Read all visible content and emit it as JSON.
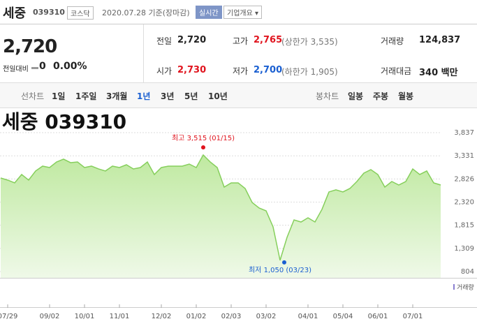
{
  "header": {
    "name": "세중",
    "code": "039310",
    "market": "코스닥",
    "date": "2020.07.28 기준(장마감)",
    "buttons": [
      "실시간",
      "기업개요"
    ]
  },
  "price": {
    "current": "2,720",
    "change_label": "전일대비",
    "change": "0",
    "change_pct": "0.00%"
  },
  "stats": [
    {
      "label": "전일",
      "value": "2,720"
    },
    {
      "label": "고가",
      "value": "2,765",
      "extra": "(상한가 3,535)",
      "color": "#e0141e"
    },
    {
      "label": "거래량",
      "value": "124,837"
    },
    {
      "label": "시가",
      "value": "2,730",
      "color": "#e0141e"
    },
    {
      "label": "저가",
      "value": "2,700",
      "extra": "(하한가 1,905)",
      "color": "#1a5fd1"
    },
    {
      "label": "거래대금",
      "value": "340 백만"
    }
  ],
  "tabs": {
    "line_label": "선차트",
    "line": [
      "1일",
      "1주일",
      "3개월",
      "1년",
      "3년",
      "5년",
      "10년"
    ],
    "selected": 3,
    "candle_label": "봉차트",
    "candle": [
      "일봉",
      "주봉",
      "월봉"
    ]
  },
  "chart_data": {
    "type": "area",
    "title": "세중 039310",
    "color": "#86cf5c",
    "values": [
      2846,
      2801,
      2740,
      2923,
      2801,
      3000,
      3106,
      3075,
      3197,
      3258,
      3182,
      3197,
      3075,
      3106,
      3045,
      3000,
      3106,
      3075,
      3136,
      3045,
      3075,
      3197,
      2923,
      3075,
      3106,
      3106,
      3106,
      3151,
      3075,
      3349,
      3197,
      3075,
      2648,
      2740,
      2740,
      2618,
      2313,
      2191,
      2130,
      1780,
      1050,
      1551,
      1932,
      1886,
      1978,
      1886,
      2161,
      2542,
      2588,
      2542,
      2618,
      2770,
      2953,
      3030,
      2923,
      2648,
      2770,
      2694,
      2770,
      3045,
      2923,
      3000,
      2740,
      2694
    ],
    "ylim": [
      804,
      3837
    ],
    "yticks": [
      {
        "value": 3837,
        "label": "3,837"
      },
      {
        "value": 3331,
        "label": "3,331"
      },
      {
        "value": 2826,
        "label": "2,826"
      },
      {
        "value": 2320,
        "label": "2,320"
      },
      {
        "value": 1815,
        "label": "1,815"
      },
      {
        "value": 1309,
        "label": "1,309"
      },
      {
        "value": 804,
        "label": "804"
      }
    ],
    "xticks": [
      {
        "value": 1,
        "label": "07/29"
      },
      {
        "value": 7,
        "label": "09/02"
      },
      {
        "value": 12,
        "label": "10/01"
      },
      {
        "value": 17,
        "label": "11/01"
      },
      {
        "value": 23,
        "label": "12/02"
      },
      {
        "value": 28,
        "label": "01/02"
      },
      {
        "value": 33,
        "label": "02/03"
      },
      {
        "value": 38,
        "label": "03/02"
      },
      {
        "value": 44,
        "label": "04/01"
      },
      {
        "value": 49,
        "label": "05/04"
      },
      {
        "value": 54,
        "label": "06/01"
      },
      {
        "value": 59,
        "label": "07/01"
      }
    ],
    "high": {
      "value": 3515,
      "label": "최고 3,515 (01/15)",
      "color": "#e0141e"
    },
    "low": {
      "value": 1050,
      "label": "최저 1,050 (03/23)",
      "color": "#1a5fd1"
    },
    "volume_label": "거래량",
    "grid": true
  }
}
